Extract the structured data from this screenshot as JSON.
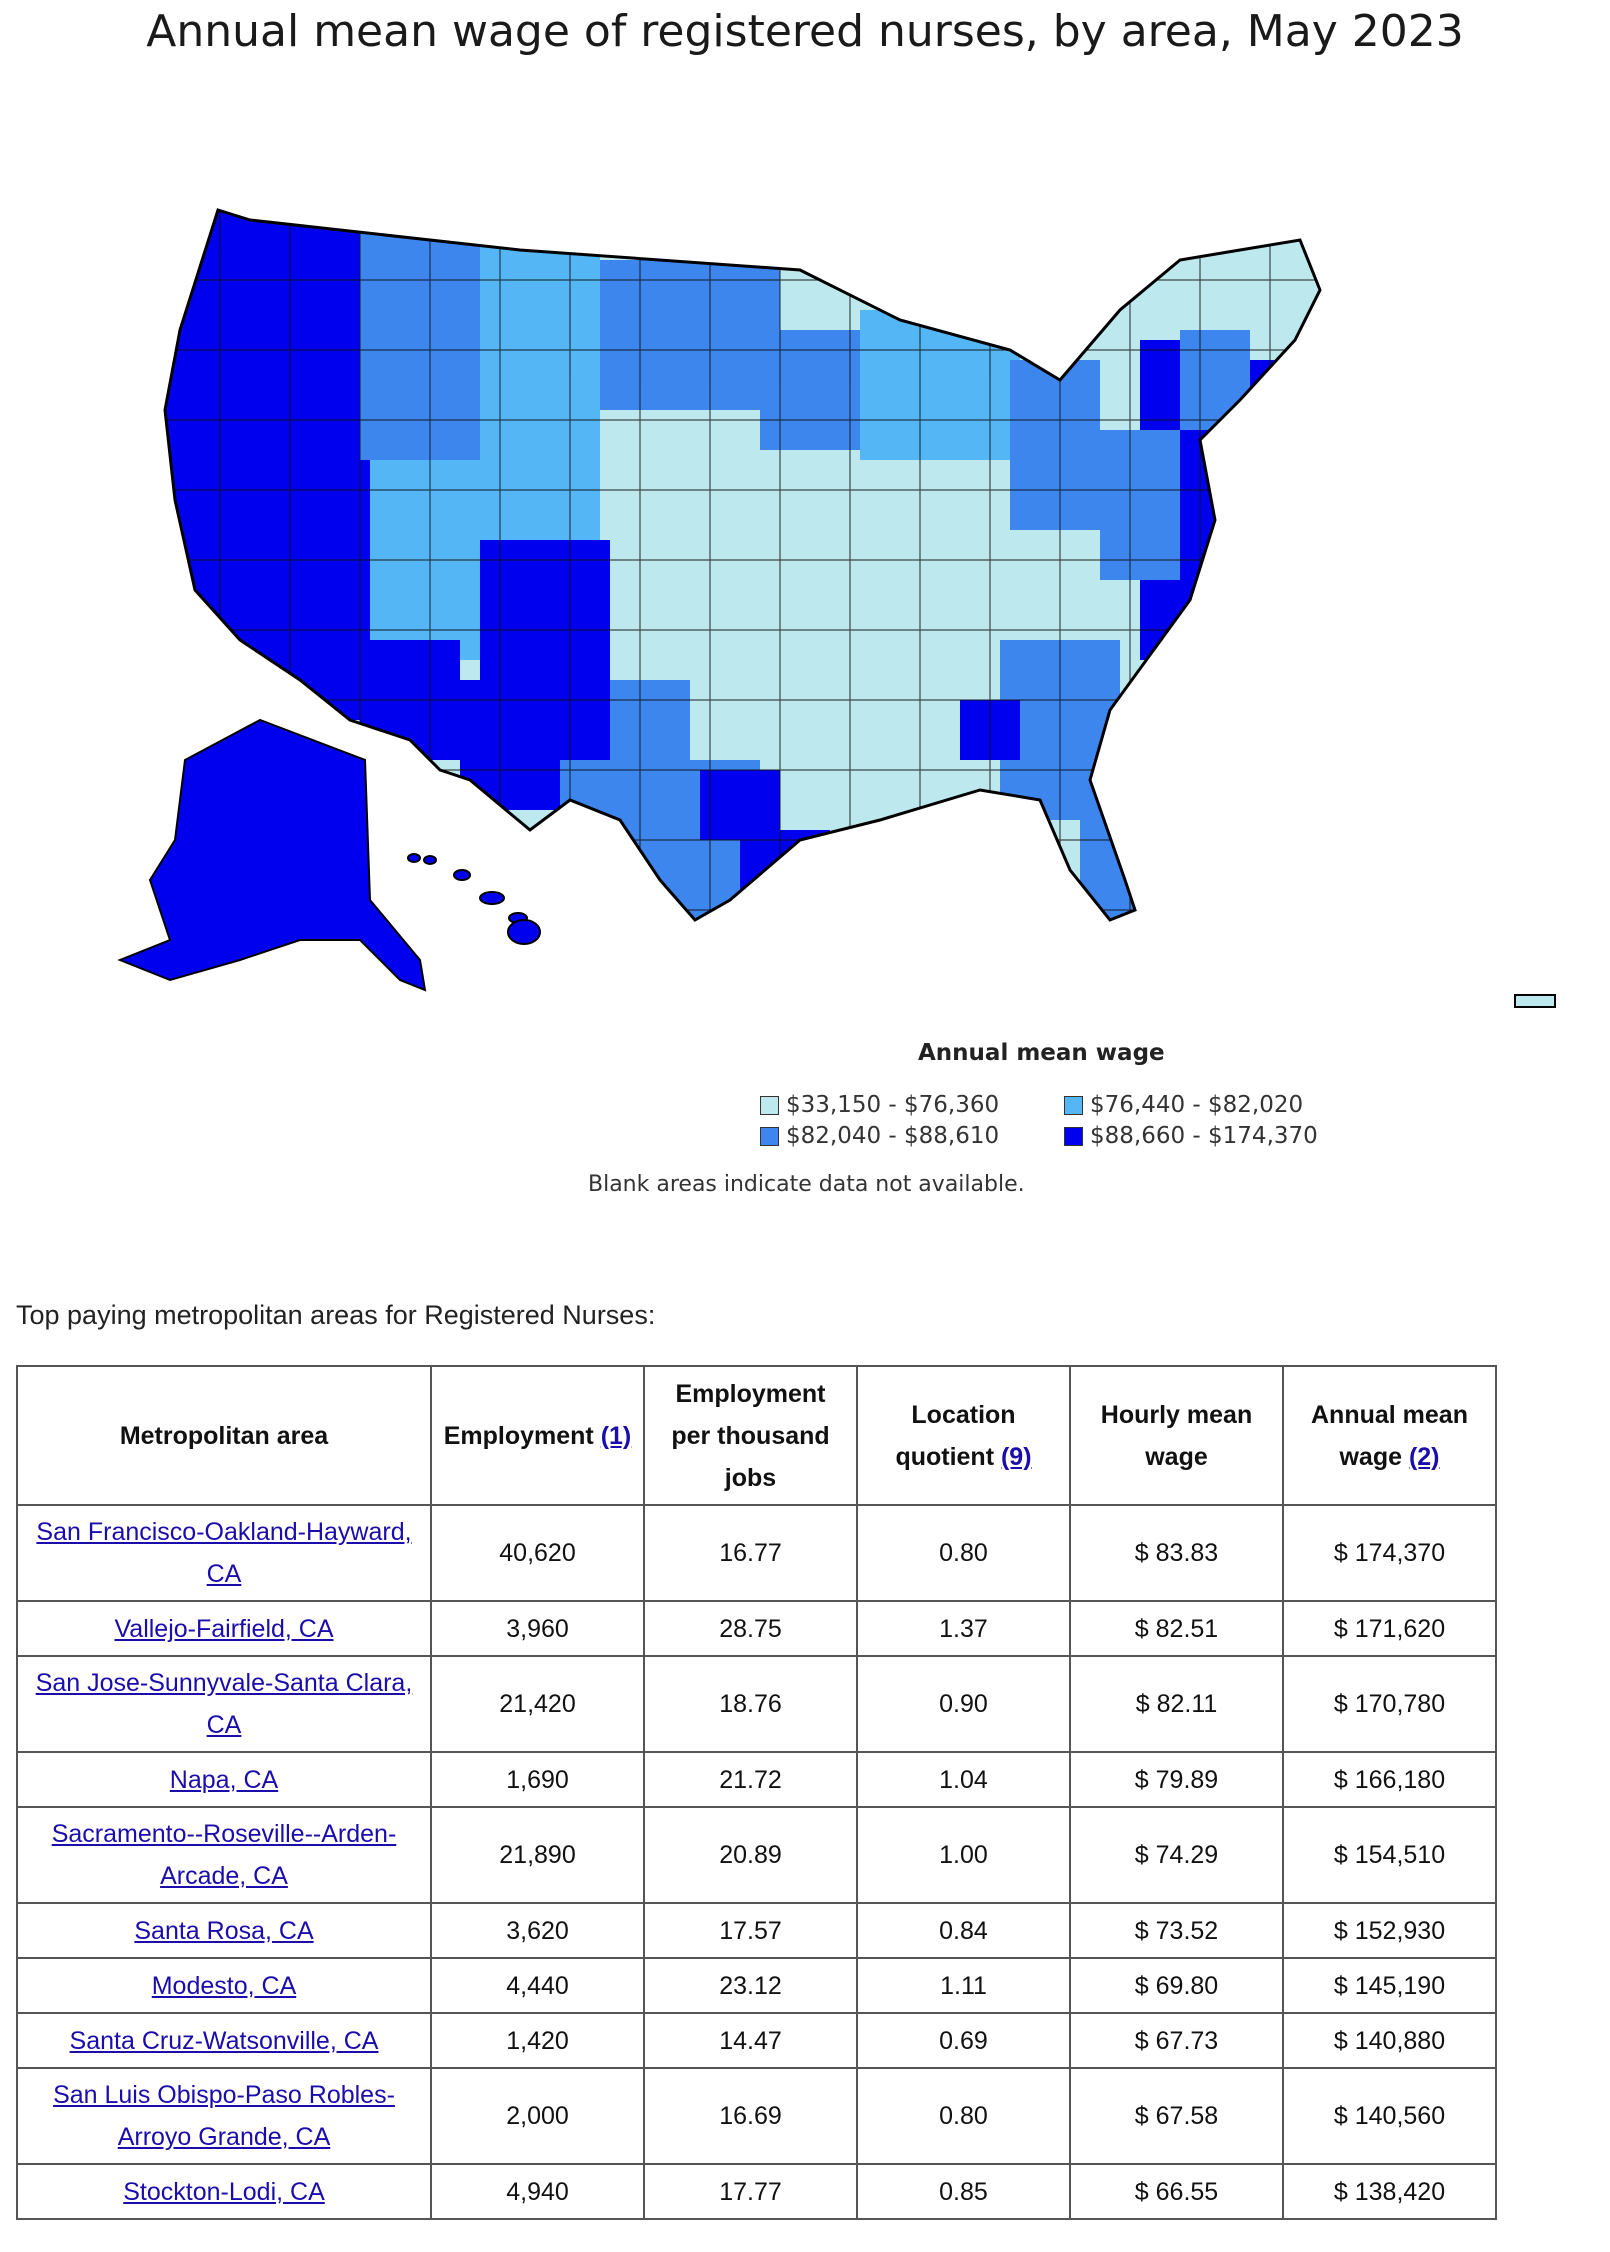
{
  "title": "Annual mean wage of registered nurses, by area, May 2023",
  "legend": {
    "title": "Annual mean wage",
    "items": [
      {
        "label": "$33,150 - $76,360",
        "color": "#bde9ee"
      },
      {
        "label": "$76,440 - $82,020",
        "color": "#55b6f5"
      },
      {
        "label": "$82,040 - $88,610",
        "color": "#3d86ee"
      },
      {
        "label": "$88,660 - $174,370",
        "color": "#0000ee"
      }
    ],
    "note": "Blank areas indicate data not available."
  },
  "table": {
    "caption": "Top paying metropolitan areas for Registered Nurses:",
    "headers": {
      "area": "Metropolitan area",
      "employment": "Employment",
      "employment_note": "(1)",
      "per_thousand": "Employment per thousand jobs",
      "lq": "Location quotient",
      "lq_note": "(9)",
      "hourly": "Hourly mean wage",
      "annual": "Annual mean wage",
      "annual_note": "(2)"
    },
    "rows": [
      {
        "area": "San Francisco-Oakland-Hayward, CA",
        "employment": "40,620",
        "per_thousand": "16.77",
        "lq": "0.80",
        "hourly": "$ 83.83",
        "annual": "$ 174,370"
      },
      {
        "area": "Vallejo-Fairfield, CA",
        "employment": "3,960",
        "per_thousand": "28.75",
        "lq": "1.37",
        "hourly": "$ 82.51",
        "annual": "$ 171,620"
      },
      {
        "area": "San Jose-Sunnyvale-Santa Clara, CA",
        "employment": "21,420",
        "per_thousand": "18.76",
        "lq": "0.90",
        "hourly": "$ 82.11",
        "annual": "$ 170,780"
      },
      {
        "area": "Napa, CA",
        "employment": "1,690",
        "per_thousand": "21.72",
        "lq": "1.04",
        "hourly": "$ 79.89",
        "annual": "$ 166,180"
      },
      {
        "area": "Sacramento--Roseville--Arden-Arcade, CA",
        "employment": "21,890",
        "per_thousand": "20.89",
        "lq": "1.00",
        "hourly": "$ 74.29",
        "annual": "$ 154,510"
      },
      {
        "area": "Santa Rosa, CA",
        "employment": "3,620",
        "per_thousand": "17.57",
        "lq": "0.84",
        "hourly": "$ 73.52",
        "annual": "$ 152,930"
      },
      {
        "area": "Modesto, CA",
        "employment": "4,440",
        "per_thousand": "23.12",
        "lq": "1.11",
        "hourly": "$ 69.80",
        "annual": "$ 145,190"
      },
      {
        "area": "Santa Cruz-Watsonville, CA",
        "employment": "1,420",
        "per_thousand": "14.47",
        "lq": "0.69",
        "hourly": "$ 67.73",
        "annual": "$ 140,880"
      },
      {
        "area": "San Luis Obispo-Paso Robles-Arroyo Grande, CA",
        "employment": "2,000",
        "per_thousand": "16.69",
        "lq": "0.80",
        "hourly": "$ 67.58",
        "annual": "$ 140,560"
      },
      {
        "area": "Stockton-Lodi, CA",
        "employment": "4,940",
        "per_thousand": "17.77",
        "lq": "0.85",
        "hourly": "$ 66.55",
        "annual": "$ 138,420"
      }
    ]
  }
}
